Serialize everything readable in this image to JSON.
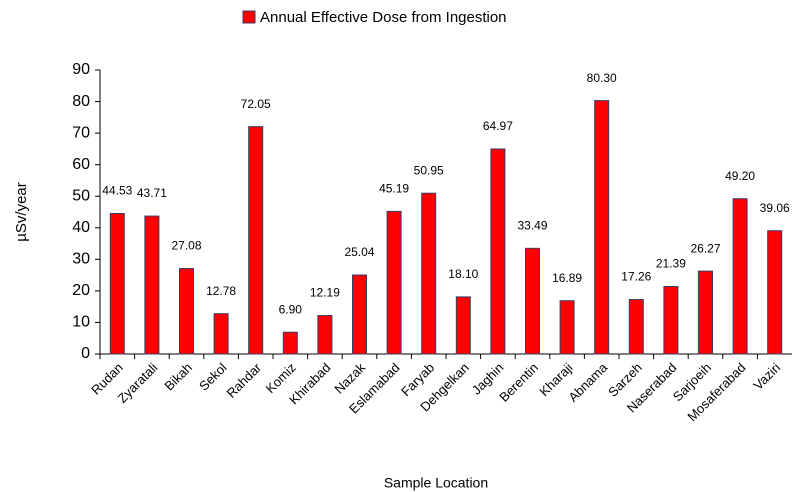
{
  "chart_data": {
    "type": "bar",
    "x_label": "Sample Location",
    "y_label": "µSv/year",
    "categories": [
      "Rudan",
      "Zyaratali",
      "Bikah",
      "Sekol",
      "Rahdar",
      "Komiz",
      "Khirabad",
      "Nazak",
      "Eslamabad",
      "Faryab",
      "Dehgelkan",
      "Jaghin",
      "Berentin",
      "Kharaji",
      "Abnama",
      "Sarzeh",
      "Naserabad",
      "Sarjoeih",
      "Mosaferabad",
      "Vaziri"
    ],
    "series": [
      {
        "name": "Annual Effective Dose from Ingestion",
        "color": "#ff0000",
        "values": [
          44.53,
          43.71,
          27.08,
          12.78,
          72.05,
          6.9,
          12.19,
          25.04,
          45.19,
          50.95,
          18.1,
          64.97,
          33.49,
          16.89,
          80.3,
          17.26,
          21.39,
          26.27,
          49.2,
          39.06
        ],
        "value_labels": [
          "44.53",
          "43.71",
          "27.08",
          "12.78",
          "72.05",
          "6.90",
          "12.19",
          "25.04",
          "45.19",
          "50.95",
          "18.10",
          "64.97",
          "33.49",
          "16.89",
          "80.30",
          "17.26",
          "21.39",
          "26.27",
          "49.20",
          "39.06"
        ]
      }
    ],
    "ylim": [
      0,
      90
    ],
    "yticks": [
      0,
      10,
      20,
      30,
      40,
      50,
      60,
      70,
      80,
      90
    ]
  }
}
